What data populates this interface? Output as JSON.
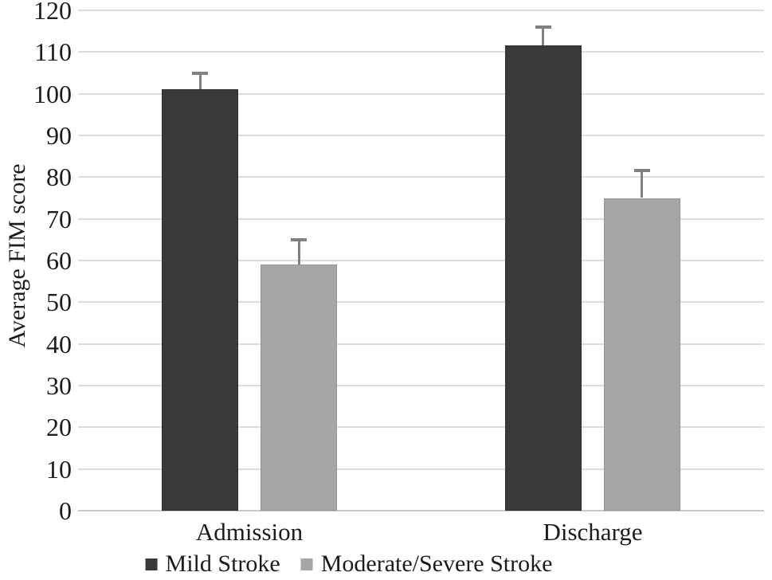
{
  "figure": {
    "background": "#ffffff",
    "text_color": "#1c1c1c",
    "gridline_color": "#dcdcdc",
    "axis_line_color": "#c8c8c8",
    "error_bar_color": "#808080"
  },
  "chart_data": {
    "type": "bar",
    "title": "",
    "xlabel": "",
    "ylabel": "Average FIM score",
    "categories": [
      "Admission",
      "Discharge"
    ],
    "series": [
      {
        "name": "Mild Stroke",
        "color": "#3a3a3a",
        "values": [
          101,
          111.5
        ],
        "error_plus": [
          4,
          4.5
        ]
      },
      {
        "name": "Moderate/Severe Stroke",
        "color": "#a6a6a6",
        "values": [
          59,
          75
        ],
        "error_plus": [
          6,
          6.5
        ]
      }
    ],
    "ylim": [
      0,
      120
    ],
    "ytick_step": 10,
    "yticks": [
      0,
      10,
      20,
      30,
      40,
      50,
      60,
      70,
      80,
      90,
      100,
      110,
      120
    ],
    "grid": "horizontal",
    "legend_position": "bottom",
    "error_bars": "plus_only"
  }
}
